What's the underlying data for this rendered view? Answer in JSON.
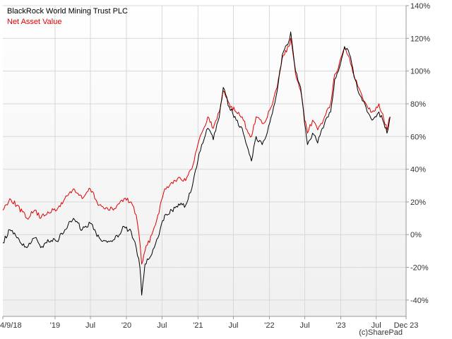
{
  "chart_data": {
    "type": "line",
    "title": "",
    "xlabel": "",
    "ylabel": "",
    "x_domain": [
      "2018-04-09",
      "2023-12-01"
    ],
    "ylim": [
      -50,
      140
    ],
    "grid": true,
    "legend_position": "top-left",
    "y_ticks": [
      140,
      120,
      100,
      80,
      60,
      40,
      20,
      0,
      -20,
      -40
    ],
    "y_tick_labels": [
      "140%",
      "120%",
      "100%",
      "80%",
      "60%",
      "40%",
      "20%",
      "0%",
      "-20%",
      "-40%"
    ],
    "x_ticks": [
      {
        "date": "2018-04-09",
        "label": "4/9/18"
      },
      {
        "date": "2019-01-01",
        "label": "'19"
      },
      {
        "date": "2019-07-01",
        "label": "Jul"
      },
      {
        "date": "2020-01-01",
        "label": "'20"
      },
      {
        "date": "2020-07-01",
        "label": "Jul"
      },
      {
        "date": "2021-01-01",
        "label": "'21"
      },
      {
        "date": "2021-07-01",
        "label": "Jul"
      },
      {
        "date": "2022-01-01",
        "label": "'22"
      },
      {
        "date": "2022-07-01",
        "label": "Jul"
      },
      {
        "date": "2023-01-01",
        "label": "'23"
      },
      {
        "date": "2023-07-01",
        "label": "Jul"
      },
      {
        "date": "2023-12-01",
        "label": "Dec 23"
      }
    ],
    "series": [
      {
        "name": "BlackRock World Mining Trust PLC",
        "color": "#000000",
        "points": [
          [
            "2018-04-09",
            -5
          ],
          [
            "2018-05-15",
            3
          ],
          [
            "2018-06-20",
            -2
          ],
          [
            "2018-08-10",
            -8
          ],
          [
            "2018-09-20",
            -2
          ],
          [
            "2018-10-20",
            -8
          ],
          [
            "2018-11-25",
            -3
          ],
          [
            "2019-01-10",
            -4
          ],
          [
            "2019-02-20",
            3
          ],
          [
            "2019-04-05",
            10
          ],
          [
            "2019-05-20",
            3
          ],
          [
            "2019-06-30",
            7
          ],
          [
            "2019-08-15",
            -2
          ],
          [
            "2019-10-01",
            -4
          ],
          [
            "2019-11-01",
            -3
          ],
          [
            "2019-12-20",
            5
          ],
          [
            "2020-01-25",
            2
          ],
          [
            "2020-02-20",
            -8
          ],
          [
            "2020-03-10",
            -20
          ],
          [
            "2020-03-19",
            -37
          ],
          [
            "2020-04-05",
            -18
          ],
          [
            "2020-05-10",
            -12
          ],
          [
            "2020-06-10",
            -2
          ],
          [
            "2020-07-15",
            12
          ],
          [
            "2020-08-20",
            15
          ],
          [
            "2020-09-30",
            18
          ],
          [
            "2020-10-30",
            18
          ],
          [
            "2020-11-30",
            28
          ],
          [
            "2020-12-31",
            45
          ],
          [
            "2021-01-20",
            55
          ],
          [
            "2021-02-20",
            65
          ],
          [
            "2021-03-20",
            58
          ],
          [
            "2021-04-20",
            72
          ],
          [
            "2021-05-10",
            90
          ],
          [
            "2021-06-10",
            78
          ],
          [
            "2021-07-15",
            70
          ],
          [
            "2021-08-15",
            65
          ],
          [
            "2021-09-15",
            52
          ],
          [
            "2021-10-01",
            45
          ],
          [
            "2021-10-25",
            60
          ],
          [
            "2021-11-25",
            55
          ],
          [
            "2021-12-15",
            60
          ],
          [
            "2022-01-10",
            72
          ],
          [
            "2022-02-10",
            88
          ],
          [
            "2022-03-08",
            110
          ],
          [
            "2022-04-10",
            118
          ],
          [
            "2022-04-20",
            124
          ],
          [
            "2022-05-15",
            100
          ],
          [
            "2022-06-10",
            90
          ],
          [
            "2022-06-30",
            68
          ],
          [
            "2022-07-15",
            55
          ],
          [
            "2022-08-10",
            62
          ],
          [
            "2022-09-05",
            56
          ],
          [
            "2022-10-10",
            68
          ],
          [
            "2022-11-10",
            75
          ],
          [
            "2022-12-01",
            95
          ],
          [
            "2022-12-20",
            100
          ],
          [
            "2023-01-20",
            115
          ],
          [
            "2023-02-15",
            110
          ],
          [
            "2023-03-15",
            95
          ],
          [
            "2023-04-10",
            85
          ],
          [
            "2023-05-10",
            78
          ],
          [
            "2023-06-10",
            70
          ],
          [
            "2023-07-01",
            72
          ],
          [
            "2023-07-15",
            75
          ],
          [
            "2023-08-10",
            68
          ],
          [
            "2023-08-25",
            62
          ],
          [
            "2023-09-10",
            72
          ]
        ]
      },
      {
        "name": "Net Asset Value",
        "color": "#e00000",
        "points": [
          [
            "2018-04-09",
            15
          ],
          [
            "2018-05-15",
            22
          ],
          [
            "2018-06-20",
            18
          ],
          [
            "2018-08-10",
            10
          ],
          [
            "2018-09-20",
            15
          ],
          [
            "2018-10-20",
            10
          ],
          [
            "2018-11-25",
            14
          ],
          [
            "2019-01-10",
            15
          ],
          [
            "2019-02-20",
            22
          ],
          [
            "2019-04-05",
            28
          ],
          [
            "2019-05-20",
            22
          ],
          [
            "2019-06-30",
            28
          ],
          [
            "2019-08-15",
            18
          ],
          [
            "2019-10-01",
            15
          ],
          [
            "2019-11-01",
            16
          ],
          [
            "2019-12-20",
            22
          ],
          [
            "2020-01-25",
            20
          ],
          [
            "2020-02-20",
            12
          ],
          [
            "2020-03-10",
            -5
          ],
          [
            "2020-03-19",
            -18
          ],
          [
            "2020-04-05",
            -10
          ],
          [
            "2020-05-10",
            0
          ],
          [
            "2020-06-10",
            12
          ],
          [
            "2020-07-15",
            28
          ],
          [
            "2020-08-20",
            32
          ],
          [
            "2020-09-30",
            35
          ],
          [
            "2020-10-30",
            33
          ],
          [
            "2020-11-30",
            40
          ],
          [
            "2020-12-31",
            55
          ],
          [
            "2021-01-20",
            62
          ],
          [
            "2021-02-20",
            72
          ],
          [
            "2021-03-20",
            65
          ],
          [
            "2021-04-20",
            75
          ],
          [
            "2021-05-10",
            88
          ],
          [
            "2021-06-10",
            80
          ],
          [
            "2021-07-15",
            75
          ],
          [
            "2021-08-15",
            72
          ],
          [
            "2021-09-15",
            62
          ],
          [
            "2021-10-01",
            60
          ],
          [
            "2021-10-25",
            72
          ],
          [
            "2021-11-25",
            68
          ],
          [
            "2021-12-15",
            70
          ],
          [
            "2022-01-10",
            78
          ],
          [
            "2022-02-10",
            90
          ],
          [
            "2022-03-08",
            108
          ],
          [
            "2022-04-10",
            115
          ],
          [
            "2022-04-20",
            120
          ],
          [
            "2022-05-15",
            98
          ],
          [
            "2022-06-10",
            88
          ],
          [
            "2022-06-30",
            70
          ],
          [
            "2022-07-15",
            62
          ],
          [
            "2022-08-10",
            70
          ],
          [
            "2022-09-05",
            64
          ],
          [
            "2022-10-10",
            72
          ],
          [
            "2022-11-10",
            80
          ],
          [
            "2022-12-01",
            98
          ],
          [
            "2022-12-20",
            102
          ],
          [
            "2023-01-20",
            114
          ],
          [
            "2023-02-15",
            108
          ],
          [
            "2023-03-15",
            95
          ],
          [
            "2023-04-10",
            88
          ],
          [
            "2023-05-10",
            80
          ],
          [
            "2023-06-10",
            75
          ],
          [
            "2023-07-01",
            78
          ],
          [
            "2023-07-15",
            80
          ],
          [
            "2023-08-10",
            70
          ],
          [
            "2023-08-25",
            64
          ],
          [
            "2023-09-10",
            72
          ]
        ]
      }
    ]
  },
  "credit": "(c)SharePad"
}
